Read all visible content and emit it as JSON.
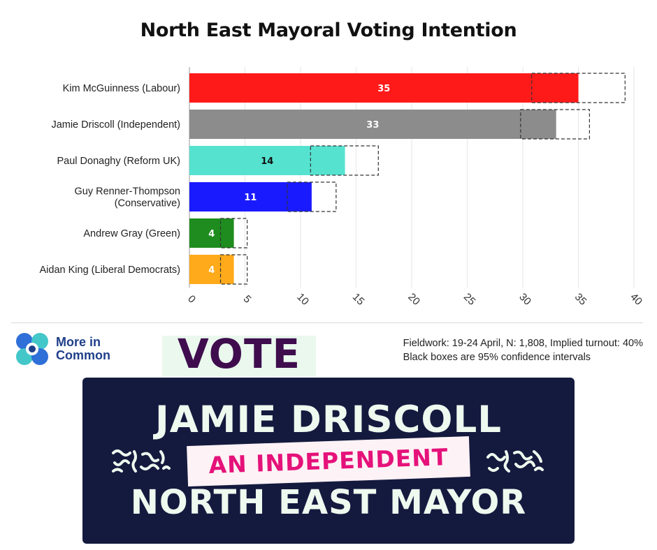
{
  "chart_data": {
    "type": "bar",
    "orientation": "horizontal",
    "title": "North East Mayoral Voting Intention",
    "categories": [
      "Kim McGuinness (Labour)",
      "Jamie Driscoll (Independent)",
      "Paul Donaghy (Reform UK)",
      "Guy Renner-Thompson (Conservative)",
      "Andrew Gray (Green)",
      "Aidan King (Liberal Democrats)"
    ],
    "category_lines": [
      [
        "Kim McGuinness (Labour)"
      ],
      [
        "Jamie Driscoll (Independent)"
      ],
      [
        "Paul Donaghy (Reform UK)"
      ],
      [
        "Guy Renner-Thompson",
        "(Conservative)"
      ],
      [
        "Andrew Gray (Green)"
      ],
      [
        "Aidan King (Liberal Democrats)"
      ]
    ],
    "values": [
      35,
      33,
      14,
      11,
      4,
      4
    ],
    "data_labels": [
      "35",
      "33",
      "14",
      "11",
      "4",
      "4"
    ],
    "colors": [
      "#ff1a1a",
      "#8c8c8c",
      "#55e3d0",
      "#1a1aff",
      "#1e8c1e",
      "#ffaa1a"
    ],
    "label_colors": [
      "#ffffff",
      "#ffffff",
      "#111111",
      "#ffffff",
      "#ffffff",
      "#ffffff"
    ],
    "confidence_intervals": [
      [
        30.8,
        39.2
      ],
      [
        29.8,
        36.0
      ],
      [
        10.9,
        17.0
      ],
      [
        8.8,
        13.2
      ],
      [
        2.8,
        5.2
      ],
      [
        2.8,
        5.2
      ]
    ],
    "xlim": [
      0,
      40
    ],
    "xticks": [
      0,
      5,
      10,
      15,
      20,
      25,
      30,
      35,
      40
    ],
    "xtick_labels": [
      "0",
      "5",
      "10",
      "15",
      "20",
      "25",
      "30",
      "35",
      "40"
    ],
    "grid": true,
    "xlabel": "",
    "ylabel": ""
  },
  "source": {
    "org_line1": "More in",
    "org_line2": "Common",
    "fieldwork": "Fieldwork: 19-24 April, N: 1,808, Implied turnout: 40%",
    "note": "Black boxes are 95% confidence intervals"
  },
  "banner": {
    "vote": "VOTE",
    "line1": "JAMIE DRISCOLL",
    "tag": "AN INDEPENDENT",
    "line2": "NORTH EAST MAYOR"
  },
  "colors": {
    "banner_bg": "#141a3e",
    "banner_text": "#eef9ef",
    "tag_text": "#e5127a",
    "vote_text": "#3f0d4e",
    "brand_blue": "#1f3f8a"
  }
}
